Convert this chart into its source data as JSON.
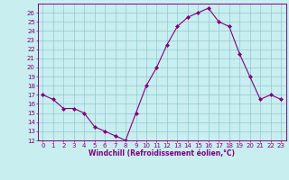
{
  "x": [
    0,
    1,
    2,
    3,
    4,
    5,
    6,
    7,
    8,
    9,
    10,
    11,
    12,
    13,
    14,
    15,
    16,
    17,
    18,
    19,
    20,
    21,
    22,
    23
  ],
  "y": [
    17,
    16.5,
    15.5,
    15.5,
    15,
    13.5,
    13,
    12.5,
    12,
    15,
    18,
    20,
    22.5,
    24.5,
    25.5,
    26,
    26.5,
    25,
    24.5,
    21.5,
    19,
    16.5,
    17,
    16.5
  ],
  "line_color": "#800080",
  "marker_color": "#800080",
  "bg_color": "#c8eef0",
  "grid_color": "#90c8d0",
  "spine_color": "#800080",
  "tick_color": "#800080",
  "xlabel": "Windchill (Refroidissement éolien,°C)",
  "ylim": [
    12,
    27
  ],
  "xlim": [
    -0.5,
    23.5
  ],
  "yticks": [
    12,
    13,
    14,
    15,
    16,
    17,
    18,
    19,
    20,
    21,
    22,
    23,
    24,
    25,
    26
  ],
  "xticks": [
    0,
    1,
    2,
    3,
    4,
    5,
    6,
    7,
    8,
    9,
    10,
    11,
    12,
    13,
    14,
    15,
    16,
    17,
    18,
    19,
    20,
    21,
    22,
    23
  ],
  "tick_fontsize": 5.0,
  "xlabel_fontsize": 5.5
}
